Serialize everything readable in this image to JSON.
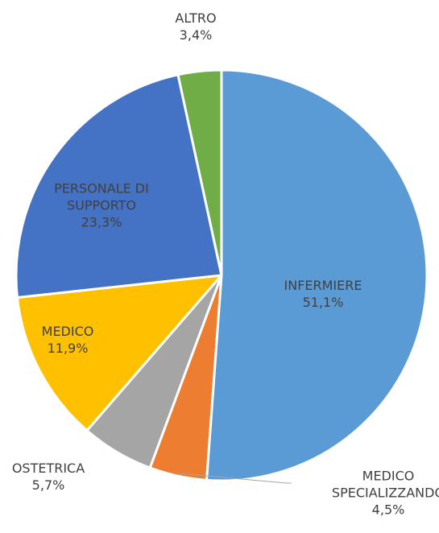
{
  "chart_data": {
    "type": "pie",
    "categories": [
      "INFERMIERE",
      "MEDICO SPECIALIZZANDO",
      "OSTETRICA",
      "MEDICO",
      "PERSONALE DI SUPPORTO",
      "ALTRO"
    ],
    "values": [
      51.1,
      4.5,
      5.7,
      11.9,
      23.3,
      3.4
    ],
    "value_labels": [
      "51,1%",
      "4,5%",
      "5,7%",
      "11,9%",
      "23,3%",
      "3,4%"
    ],
    "colors": [
      "#5b9bd5",
      "#ed7d31",
      "#a5a5a5",
      "#ffc000",
      "#4472c4",
      "#70ad47"
    ]
  }
}
